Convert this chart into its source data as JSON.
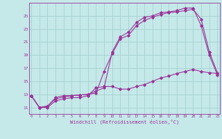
{
  "xlabel": "Windchill (Refroidissement éolien,°C)",
  "bg_color": "#c5e8e8",
  "line_color": "#993399",
  "grid_color": "#a0cccc",
  "x_ticks": [
    0,
    1,
    2,
    3,
    4,
    5,
    6,
    7,
    8,
    9,
    10,
    11,
    12,
    13,
    14,
    15,
    16,
    17,
    18,
    19,
    20,
    21,
    22,
    23
  ],
  "y_ticks": [
    11,
    13,
    15,
    17,
    19,
    21,
    23,
    25
  ],
  "xlim": [
    -0.3,
    23.3
  ],
  "ylim": [
    10.0,
    27.0
  ],
  "line1_x": [
    0,
    1,
    2,
    3,
    4,
    5,
    6,
    7,
    8,
    9,
    10,
    11,
    12,
    13,
    14,
    15,
    16,
    17,
    18,
    19,
    20,
    21,
    22,
    23
  ],
  "line1_y": [
    12.8,
    11.0,
    11.2,
    12.5,
    12.8,
    12.8,
    12.9,
    13.0,
    13.2,
    16.5,
    19.2,
    21.5,
    22.0,
    23.5,
    24.3,
    24.8,
    25.2,
    25.5,
    25.6,
    25.8,
    26.0,
    24.5,
    19.5,
    16.3
  ],
  "line2_x": [
    0,
    1,
    2,
    3,
    4,
    5,
    6,
    7,
    8,
    9,
    10,
    11,
    12,
    13,
    14,
    15,
    16,
    17,
    18,
    19,
    20,
    21,
    22,
    23
  ],
  "line2_y": [
    12.8,
    11.0,
    11.2,
    12.3,
    12.6,
    12.8,
    12.9,
    13.0,
    13.5,
    14.0,
    19.5,
    21.8,
    22.5,
    24.0,
    24.8,
    25.0,
    25.5,
    25.6,
    25.8,
    26.2,
    26.2,
    23.5,
    19.0,
    16.0
  ],
  "line3_x": [
    0,
    1,
    2,
    3,
    4,
    5,
    6,
    7,
    8,
    9,
    10,
    11,
    12,
    13,
    14,
    15,
    16,
    17,
    18,
    19,
    20,
    21,
    22,
    23
  ],
  "line3_y": [
    12.8,
    11.0,
    11.0,
    12.0,
    12.3,
    12.5,
    12.5,
    12.8,
    14.0,
    14.2,
    14.2,
    13.8,
    13.8,
    14.2,
    14.5,
    15.0,
    15.5,
    15.8,
    16.2,
    16.5,
    16.8,
    16.5,
    16.3,
    16.2
  ]
}
